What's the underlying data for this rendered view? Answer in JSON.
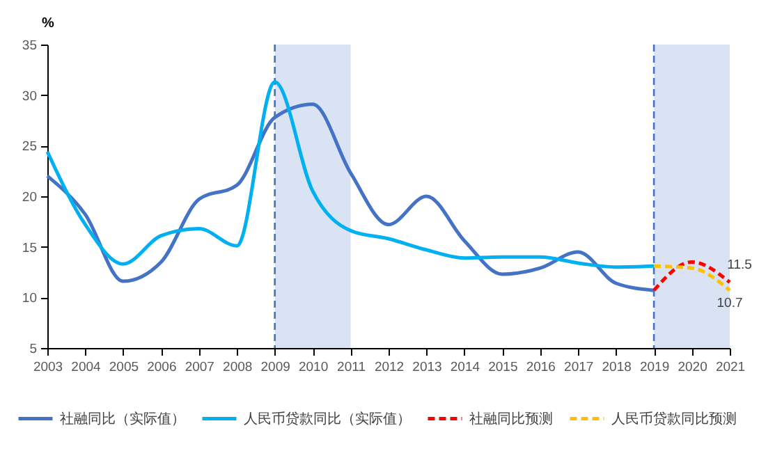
{
  "chart_data": {
    "type": "line",
    "ylabel": "%",
    "x": [
      2003,
      2004,
      2005,
      2006,
      2007,
      2008,
      2009,
      2010,
      2011,
      2012,
      2013,
      2014,
      2015,
      2016,
      2017,
      2018,
      2019
    ],
    "xlim": [
      2003,
      2021
    ],
    "xticks": [
      2003,
      2004,
      2005,
      2006,
      2007,
      2008,
      2009,
      2010,
      2011,
      2012,
      2013,
      2014,
      2015,
      2016,
      2017,
      2018,
      2019,
      2020,
      2021
    ],
    "ylim": [
      5,
      35
    ],
    "yticks": [
      5,
      10,
      15,
      20,
      25,
      30,
      35
    ],
    "series": [
      {
        "name": "社融同比（实际值）",
        "color": "#4472c4",
        "line_style": "solid",
        "values": [
          22.0,
          18.2,
          11.6,
          13.5,
          19.7,
          21.1,
          27.8,
          29.1,
          22.3,
          17.2,
          20.0,
          15.6,
          12.3,
          12.9,
          14.5,
          11.4,
          10.7
        ]
      },
      {
        "name": "人民币贷款同比（实际值）",
        "color": "#00b0f0",
        "line_style": "solid",
        "values": [
          24.4,
          17.2,
          13.3,
          16.1,
          16.8,
          15.1,
          31.3,
          20.5,
          16.6,
          15.8,
          14.7,
          13.9,
          14.0,
          14.0,
          13.4,
          13.0,
          13.1
        ]
      },
      {
        "name": "社融同比预测",
        "color": "#ff0000",
        "line_style": "dashed",
        "x": [
          2019,
          2020,
          2021
        ],
        "values": [
          10.7,
          13.5,
          11.5
        ],
        "value_labels": [
          null,
          null,
          "11.5"
        ]
      },
      {
        "name": "人民币贷款同比预测",
        "color": "#ffc000",
        "line_style": "dashed",
        "x": [
          2019,
          2020,
          2021
        ],
        "values": [
          13.1,
          12.9,
          10.7
        ],
        "value_labels": [
          null,
          null,
          "10.7"
        ]
      }
    ],
    "ref_lines": [
      {
        "axis": "x",
        "value": 2009,
        "color": "#4472c4",
        "line_style": "dashed"
      },
      {
        "axis": "x",
        "value": 2019,
        "color": "#4472c4",
        "line_style": "dashed"
      }
    ],
    "bands": [
      {
        "axis": "x",
        "from": 2009,
        "to": 2011,
        "color": "#dae3f3"
      },
      {
        "axis": "x",
        "from": 2019,
        "to": 2021,
        "color": "#dae3f3"
      }
    ],
    "grid": false,
    "legend": "bottom"
  }
}
